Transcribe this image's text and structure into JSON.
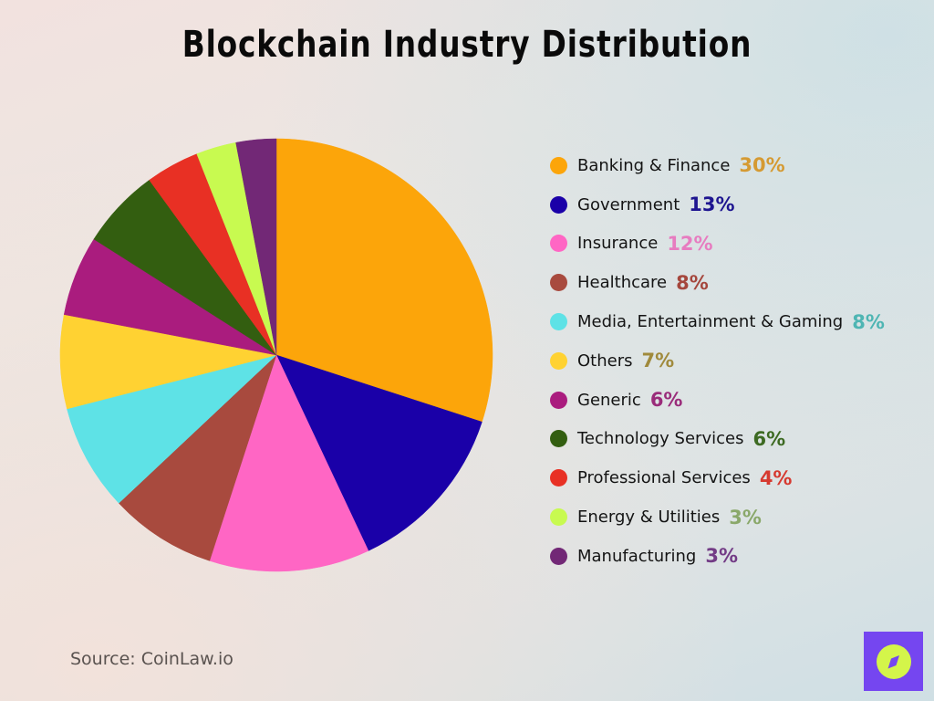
{
  "title": "Blockchain Industry Distribution",
  "source": "Source: CoinLaw.io",
  "logo": {
    "icon": "compass-icon",
    "bg_color": "#7546f0",
    "fg_color": "#d4f54a"
  },
  "legend": [
    {
      "label": "Banking & Finance",
      "value": "30%",
      "color": "#fca50a",
      "value_color": "#d59a32"
    },
    {
      "label": "Government",
      "value": "13%",
      "color": "#1a00a8",
      "value_color": "#1e1590"
    },
    {
      "label": "Insurance",
      "value": "12%",
      "color": "#ff66c4",
      "value_color": "#e77cc0"
    },
    {
      "label": "Healthcare",
      "value": "8%",
      "color": "#a84a3e",
      "value_color": "#a5473d"
    },
    {
      "label": "Media, Entertainment & Gaming",
      "value": "8%",
      "color": "#5ee2e6",
      "value_color": "#4eb5b3"
    },
    {
      "label": "Others",
      "value": "7%",
      "color": "#ffd232",
      "value_color": "#a08a3c"
    },
    {
      "label": "Generic",
      "value": "6%",
      "color": "#aa1c7e",
      "value_color": "#9a2c7a"
    },
    {
      "label": "Technology Services",
      "value": "6%",
      "color": "#335e10",
      "value_color": "#3d6a22"
    },
    {
      "label": "Professional Services",
      "value": "4%",
      "color": "#e83024",
      "value_color": "#d63a30"
    },
    {
      "label": "Energy & Utilities",
      "value": "3%",
      "color": "#c8fa50",
      "value_color": "#8aa86a"
    },
    {
      "label": "Manufacturing",
      "value": "3%",
      "color": "#722876",
      "value_color": "#733c86"
    }
  ],
  "chart_data": {
    "type": "pie",
    "title": "Blockchain Industry Distribution",
    "categories": [
      "Banking & Finance",
      "Government",
      "Insurance",
      "Healthcare",
      "Media, Entertainment & Gaming",
      "Others",
      "Generic",
      "Technology Services",
      "Professional Services",
      "Energy & Utilities",
      "Manufacturing"
    ],
    "values": [
      30,
      13,
      12,
      8,
      8,
      7,
      6,
      6,
      4,
      3,
      3
    ],
    "colors": [
      "#fca50a",
      "#1a00a8",
      "#ff66c4",
      "#a84a3e",
      "#5ee2e6",
      "#ffd232",
      "#aa1c7e",
      "#335e10",
      "#e83024",
      "#c8fa50",
      "#722876"
    ],
    "unit": "%",
    "start_angle": "12 o'clock",
    "direction": "clockwise",
    "legend_position": "right",
    "source": "CoinLaw.io"
  }
}
